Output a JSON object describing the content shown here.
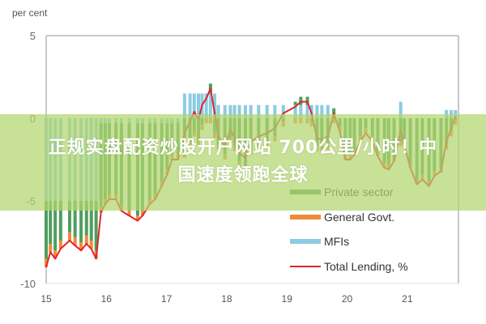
{
  "chart_data": {
    "type": "bar",
    "ylabel": "per cent",
    "ylim": [
      -10,
      5
    ],
    "yticks": [
      "5",
      "0",
      "-5",
      "-10"
    ],
    "ytick_values": [
      5,
      0,
      -5,
      -10
    ],
    "xlim": [
      15,
      21.85
    ],
    "xticks": [
      "15",
      "16",
      "17",
      "18",
      "19",
      "20",
      "21"
    ],
    "xtick_values": [
      15,
      16,
      17,
      18,
      19,
      20,
      21
    ],
    "grid": false,
    "legend_position": "bottom-right",
    "x": [
      15.0,
      15.07,
      15.15,
      15.24,
      15.39,
      15.48,
      15.58,
      15.67,
      15.75,
      15.83,
      15.91,
      15.98,
      16.05,
      16.16,
      16.25,
      16.38,
      16.52,
      16.6,
      16.72,
      16.81,
      16.92,
      17.01,
      17.09,
      17.19,
      17.3,
      17.39,
      17.46,
      17.53,
      17.59,
      17.66,
      17.73,
      17.8,
      17.86,
      17.97,
      18.06,
      18.13,
      18.21,
      18.31,
      18.4,
      18.53,
      18.67,
      18.8,
      18.94,
      19.14,
      19.23,
      19.34,
      19.41,
      19.5,
      19.58,
      19.68,
      19.78,
      19.88,
      19.97,
      20.05,
      20.12,
      20.22,
      20.31,
      20.42,
      20.51,
      20.62,
      20.69,
      20.78,
      20.89,
      20.95,
      21.05,
      21.16,
      21.25,
      21.36,
      21.45,
      21.56,
      21.65,
      21.73,
      21.8
    ],
    "series": [
      {
        "name": "Private sector",
        "kind": "bar",
        "color": "#4f9e5f",
        "values": [
          -3.5,
          -2.6,
          -3.0,
          -2.4,
          -1.9,
          -2.2,
          -2.5,
          -2.1,
          -2.4,
          -3.0,
          -5.1,
          -4.6,
          -4.3,
          -4.3,
          -5.0,
          -5.3,
          -5.6,
          -5.3,
          -4.6,
          -4.3,
          -3.5,
          -2.8,
          -1.9,
          -1.9,
          -2.1,
          -1.4,
          -0.8,
          -1.3,
          -0.4,
          0.0,
          0.6,
          -0.9,
          -1.6,
          -2.2,
          -1.2,
          -1.7,
          -2.6,
          -2.9,
          -1.9,
          -1.6,
          -1.4,
          -1.1,
          -0.2,
          0.2,
          0.5,
          0.5,
          -0.2,
          -1.7,
          -1.8,
          -1.6,
          0.6,
          -0.5,
          -2.2,
          -2.2,
          -1.9,
          -1.1,
          -0.6,
          -1.1,
          -2.0,
          -2.7,
          -2.8,
          -2.3,
          -1.4,
          -1.3,
          -2.7,
          -3.7,
          -3.4,
          -3.8,
          -3.2,
          -3.0,
          -1.6,
          -0.8,
          -0.1
        ]
      },
      {
        "name": "General Govt.",
        "kind": "bar",
        "color": "#f0893a",
        "values": [
          -0.5,
          -0.5,
          -0.5,
          -0.5,
          -0.5,
          -0.5,
          -0.5,
          -0.5,
          -0.5,
          -0.5,
          -0.3,
          -0.3,
          -0.3,
          -0.3,
          -0.3,
          -0.3,
          -0.3,
          -0.3,
          -0.3,
          -0.3,
          -0.3,
          -0.3,
          -0.3,
          -0.3,
          -0.3,
          -0.3,
          -0.3,
          -0.3,
          -0.3,
          -0.3,
          -0.3,
          -0.3,
          -0.3,
          -0.3,
          -0.3,
          -0.3,
          -0.3,
          -0.3,
          -0.3,
          -0.3,
          -0.3,
          -0.3,
          -0.3,
          -0.3,
          -0.3,
          -0.3,
          -0.3,
          -0.3,
          -0.3,
          -0.3,
          -0.3,
          -0.3,
          -0.3,
          -0.3,
          -0.3,
          -0.3,
          -0.3,
          -0.3,
          -0.3,
          -0.3,
          -0.3,
          -0.3,
          -0.3,
          -0.3,
          -0.3,
          -0.3,
          -0.3,
          -0.3,
          -0.3,
          -0.3,
          -0.3,
          -0.3,
          -0.3
        ]
      },
      {
        "name": "MFIs",
        "kind": "bar",
        "color": "#8ccbe3",
        "values": [
          -5.0,
          -5.0,
          -5.0,
          -5.0,
          -5.0,
          -5.0,
          -5.0,
          -5.0,
          -5.0,
          -5.0,
          -0.3,
          -0.3,
          -0.3,
          -0.3,
          -0.3,
          -0.3,
          -0.3,
          -0.3,
          -0.3,
          -0.3,
          -0.3,
          -0.3,
          -0.3,
          -0.3,
          1.5,
          1.5,
          1.5,
          1.5,
          1.5,
          1.5,
          1.5,
          1.5,
          0.8,
          0.8,
          0.8,
          0.8,
          0.8,
          0.8,
          0.8,
          0.8,
          0.8,
          0.8,
          0.8,
          0.8,
          0.8,
          0.8,
          0.8,
          0.8,
          0.8,
          0.8,
          0.0,
          0.0,
          0.0,
          0.0,
          0.0,
          0.0,
          0.0,
          0.0,
          0.0,
          0.0,
          0.0,
          0.0,
          1.0,
          0.0,
          0.0,
          0.0,
          0.0,
          0.0,
          0.0,
          0.0,
          0.5,
          0.5,
          0.5
        ]
      },
      {
        "name": "Total Lending, %",
        "kind": "line",
        "color": "#e3242b",
        "values": [
          -9.0,
          -8.1,
          -8.5,
          -7.9,
          -7.4,
          -7.7,
          -8.0,
          -7.6,
          -7.9,
          -8.5,
          -5.7,
          -5.2,
          -4.9,
          -4.9,
          -5.6,
          -5.9,
          -6.2,
          -5.9,
          -5.2,
          -4.9,
          -4.1,
          -3.4,
          -2.5,
          -2.5,
          -0.9,
          -0.2,
          0.4,
          -0.1,
          0.8,
          1.2,
          1.8,
          0.3,
          -1.1,
          -1.7,
          -0.7,
          -1.2,
          -2.1,
          -2.4,
          -1.4,
          -1.1,
          -0.9,
          -0.6,
          0.3,
          0.7,
          1.0,
          1.0,
          0.3,
          -1.2,
          -1.3,
          -1.1,
          0.3,
          -0.8,
          -2.5,
          -2.5,
          -2.2,
          -1.4,
          -0.9,
          -1.4,
          -2.3,
          -3.0,
          -3.1,
          -2.6,
          -0.7,
          -1.6,
          -3.0,
          -4.0,
          -3.7,
          -4.1,
          -3.5,
          -3.2,
          -1.4,
          -0.6,
          0.1
        ]
      }
    ]
  },
  "overlay": {
    "line1": "正规实盘配资炒股开户网站 700公里/小时！中",
    "line2": "国速度领跑全球",
    "background": "#b2d66e"
  }
}
